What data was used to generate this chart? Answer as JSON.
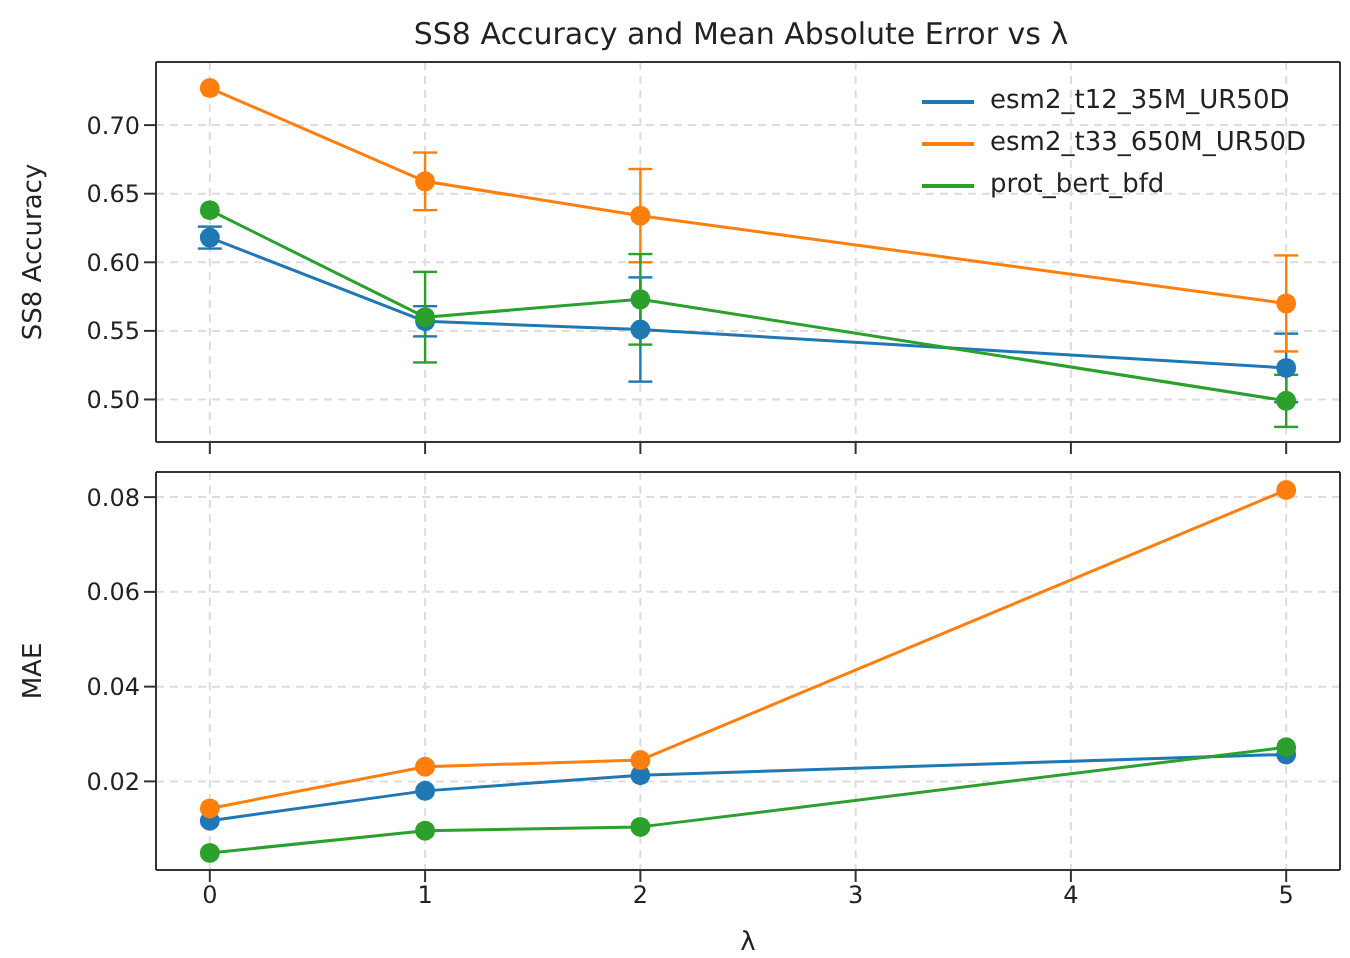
{
  "chart_data": [
    {
      "type": "line",
      "title": "SS8 Accuracy and Mean Absolute Error vs λ",
      "ylabel": "SS8 Accuracy",
      "x": [
        0,
        1,
        2,
        5
      ],
      "xlim": [
        -0.25,
        5.25
      ],
      "xticks": [
        0,
        1,
        2,
        3,
        4,
        5
      ],
      "ylim": [
        0.469,
        0.746
      ],
      "yticks": [
        {
          "value": 0.5,
          "label": "0.50"
        },
        {
          "value": 0.55,
          "label": "0.55"
        },
        {
          "value": 0.6,
          "label": "0.60"
        },
        {
          "value": 0.65,
          "label": "0.65"
        },
        {
          "value": 0.7,
          "label": "0.70"
        }
      ],
      "tick_labels": "y",
      "grid": true,
      "legend": "top right",
      "marker": "circle",
      "line_style": "solid",
      "series": [
        {
          "name": "esm2_t12_35M_UR50D",
          "color": "#1f77b4",
          "values": [
            0.618,
            0.557,
            0.551,
            0.523
          ],
          "errors": [
            0.008,
            0.011,
            0.038,
            0.025
          ]
        },
        {
          "name": "esm2_t33_650M_UR50D",
          "color": "#ff7f0e",
          "values": [
            0.727,
            0.659,
            0.634,
            0.57
          ],
          "errors": [
            null,
            0.021,
            0.034,
            0.035
          ]
        },
        {
          "name": "prot_bert_bfd",
          "color": "#2ca02c",
          "values": [
            0.638,
            0.56,
            0.573,
            0.499
          ],
          "errors": [
            null,
            0.033,
            0.033,
            0.019
          ]
        }
      ]
    },
    {
      "type": "line",
      "xlabel": "λ",
      "ylabel": "MAE",
      "x": [
        0,
        1,
        2,
        5
      ],
      "xlim": [
        -0.25,
        5.25
      ],
      "xticks": [
        0,
        1,
        2,
        3,
        4,
        5
      ],
      "ylim": [
        0.0013,
        0.0853
      ],
      "yticks": [
        0.02,
        0.04,
        0.06,
        0.08
      ],
      "grid": true,
      "marker": "circle",
      "line_style": "solid",
      "series": [
        {
          "color": "#1f77b4",
          "values": [
            0.0117,
            0.018,
            0.0213,
            0.0257
          ]
        },
        {
          "color": "#ff7f0e",
          "values": [
            0.0143,
            0.0231,
            0.0245,
            0.0815
          ]
        },
        {
          "color": "#2ca02c",
          "values": [
            0.0049,
            0.0096,
            0.0104,
            0.0272
          ]
        }
      ]
    }
  ]
}
